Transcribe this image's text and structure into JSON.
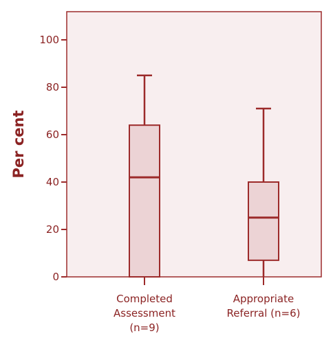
{
  "chart_data": {
    "type": "boxplot",
    "ylabel": "Per cent",
    "ylim": [
      0,
      110
    ],
    "yticks": [
      0,
      20,
      40,
      60,
      80,
      100
    ],
    "categories": [
      {
        "lines": [
          "Completed",
          "Assessment",
          "(n=9)"
        ]
      },
      {
        "lines": [
          "Appropriate",
          "Referral (n=6)"
        ]
      }
    ],
    "boxes": [
      {
        "min": 0,
        "q1": 0,
        "median": 42,
        "q3": 64,
        "max": 85
      },
      {
        "min": 0,
        "q1": 7,
        "median": 25,
        "q3": 40,
        "max": 71
      }
    ],
    "grid": false,
    "colors": {
      "stroke": "#9c2a2a",
      "box_fill": "#ecd3d5",
      "plot_bg": "#f8eeef",
      "text": "#8b2323"
    }
  }
}
